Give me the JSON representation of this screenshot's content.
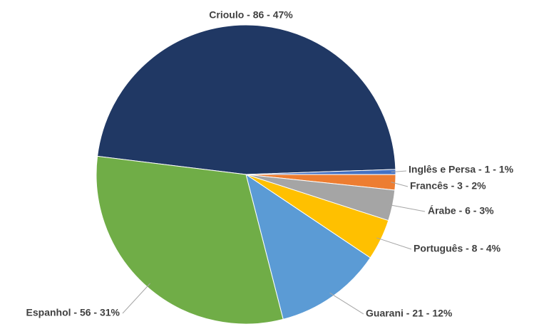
{
  "chart_data": {
    "type": "pie",
    "categories": [
      "Crioulo",
      "Inglês e Persa",
      "Francês",
      "Árabe",
      "Português",
      "Guarani",
      "Espanhol"
    ],
    "values": [
      86,
      1,
      3,
      6,
      8,
      21,
      56
    ],
    "value_labels": [
      "Crioulo - 86 - 47%",
      "Inglês e Persa - 1 - 1%",
      "Francês - 3 - 2%",
      "Árabe - 6 - 3%",
      "Português - 8 - 4%",
      "Guarani - 21 - 12%",
      "Espanhol - 56 - 31%"
    ],
    "colors": [
      "#203864",
      "#4472c4",
      "#ed7d31",
      "#a5a5a5",
      "#ffc000",
      "#5b9bd5",
      "#70ad47"
    ]
  }
}
